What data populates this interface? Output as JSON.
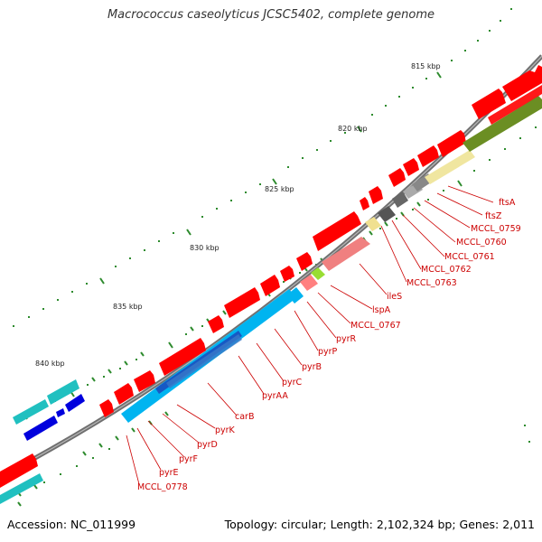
{
  "title": "Macrococcus caseolyticus JCSC5402, complete genome",
  "footer": {
    "accession": "Accession: NC_011999",
    "summary": "Topology: circular; Length: 2,102,324 bp; Genes: 2,011"
  },
  "ruler_labels": [
    "815 kbp",
    "820 kbp",
    "825 kbp",
    "830 kbp",
    "835 kbp",
    "840 kbp"
  ],
  "genes": [
    "ftsA",
    "ftsZ",
    "MCCL_0759",
    "MCCL_0760",
    "MCCL_0761",
    "MCCL_0762",
    "MCCL_0763",
    "ileS",
    "lspA",
    "MCCL_0767",
    "pyrR",
    "pyrP",
    "pyrB",
    "pyrC",
    "pyrAA",
    "carB",
    "pyrK",
    "pyrD",
    "pyrF",
    "pyrE",
    "MCCL_0778"
  ],
  "colors": {
    "cds": "#ff0000",
    "pyr_operon": "#00aaee",
    "backbone": "#777777",
    "tick": "#2e8b2e",
    "label": "#cc0000"
  }
}
